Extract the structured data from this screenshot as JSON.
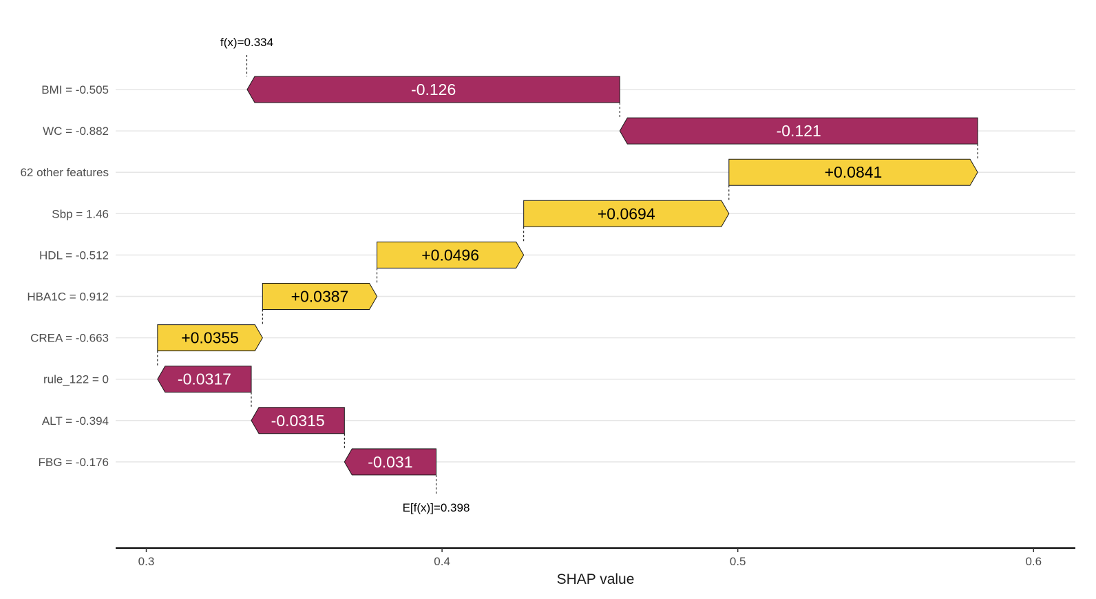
{
  "chart_data": {
    "type": "waterfall",
    "xlabel": "SHAP value",
    "xlim": [
      0.29,
      0.615
    ],
    "x_ticks": [
      0.3,
      0.4,
      0.5,
      0.6
    ],
    "x_tick_labels": [
      "0.3",
      "0.4",
      "0.5",
      "0.6"
    ],
    "base_value": 0.398,
    "base_label": "E[f(x)]=0.398",
    "final_value": 0.334,
    "final_label": "f(x)=0.334",
    "grid": "horizontal-major",
    "colors": {
      "positive": "#F7D13D",
      "negative": "#A52C60",
      "positive_text": "#000000",
      "negative_text": "#ffffff",
      "gridline": "#e6e6e6",
      "axis": "#000000"
    },
    "features": [
      {
        "label": "BMI = -0.505",
        "contribution": -0.126,
        "value_label": "-0.126"
      },
      {
        "label": "WC = -0.882",
        "contribution": -0.121,
        "value_label": "-0.121"
      },
      {
        "label": "62 other features",
        "contribution": 0.0841,
        "value_label": "+0.0841"
      },
      {
        "label": "Sbp = 1.46",
        "contribution": 0.0694,
        "value_label": "+0.0694"
      },
      {
        "label": "HDL = -0.512",
        "contribution": 0.0496,
        "value_label": "+0.0496"
      },
      {
        "label": "HBA1C = 0.912",
        "contribution": 0.0387,
        "value_label": "+0.0387"
      },
      {
        "label": "CREA = -0.663",
        "contribution": 0.0355,
        "value_label": "+0.0355"
      },
      {
        "label": "rule_122 = 0",
        "contribution": -0.0317,
        "value_label": "-0.0317"
      },
      {
        "label": "ALT = -0.394",
        "contribution": -0.0315,
        "value_label": "-0.0315"
      },
      {
        "label": "FBG = -0.176",
        "contribution": -0.031,
        "value_label": "-0.031"
      }
    ]
  }
}
